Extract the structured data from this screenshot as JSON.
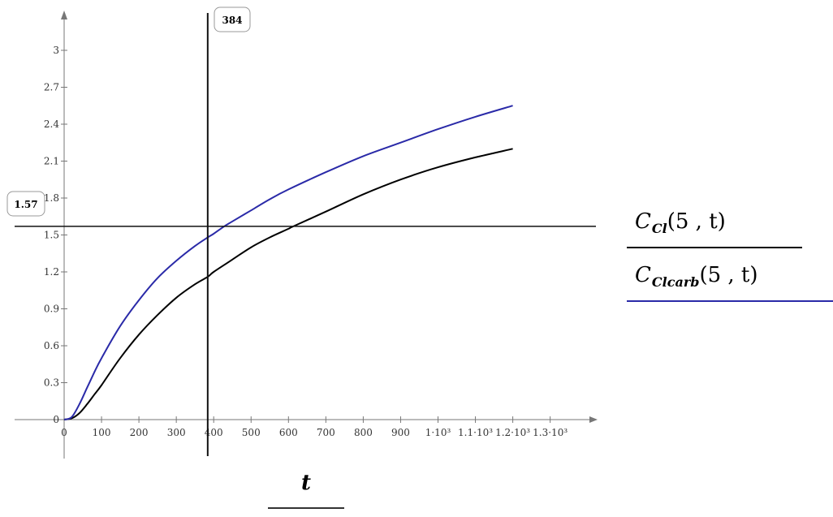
{
  "chart_data": {
    "type": "line",
    "xlabel": "t",
    "x_ticks": [
      "0",
      "100",
      "200",
      "300",
      "400",
      "500",
      "600",
      "700",
      "800",
      "900",
      "1·10³",
      "1.1·10³",
      "1.2·10³",
      "1.3·10³"
    ],
    "y_ticks": [
      "0",
      "0.3",
      "0.6",
      "0.9",
      "1.2",
      "1.5",
      "1.8",
      "2.1",
      "2.4",
      "2.7",
      "3"
    ],
    "xlim": [
      0,
      1400
    ],
    "ylim": [
      0,
      3.3
    ],
    "grid": false,
    "series": [
      {
        "name": "C_Cl(5,t)",
        "color": "#000000",
        "x": [
          0,
          20,
          40,
          60,
          80,
          100,
          150,
          200,
          250,
          300,
          350,
          384,
          400,
          450,
          500,
          550,
          600,
          613,
          700,
          800,
          900,
          1000,
          1100,
          1200
        ],
        "y": [
          0,
          0.01,
          0.05,
          0.12,
          0.2,
          0.28,
          0.5,
          0.69,
          0.85,
          0.99,
          1.1,
          1.16,
          1.2,
          1.3,
          1.4,
          1.48,
          1.55,
          1.57,
          1.69,
          1.83,
          1.95,
          2.05,
          2.13,
          2.2
        ]
      },
      {
        "name": "C_Clcarb(5,t)",
        "color": "#2a2aa8",
        "x": [
          0,
          20,
          40,
          60,
          80,
          100,
          150,
          200,
          250,
          300,
          350,
          384,
          400,
          428,
          450,
          500,
          550,
          600,
          700,
          800,
          900,
          1000,
          1100,
          1200
        ],
        "y": [
          0,
          0.02,
          0.12,
          0.25,
          0.38,
          0.5,
          0.76,
          0.97,
          1.15,
          1.29,
          1.41,
          1.48,
          1.51,
          1.57,
          1.61,
          1.7,
          1.79,
          1.87,
          2.01,
          2.14,
          2.25,
          2.36,
          2.46,
          2.55
        ]
      }
    ],
    "markers": {
      "x_value": 384,
      "x_label": "384",
      "y_value": 1.57,
      "y_label": "1.57"
    }
  },
  "legend": {
    "items": [
      {
        "base": "C",
        "sub": "Cl",
        "args": "(5 , t)",
        "color": "#000000"
      },
      {
        "base": "C",
        "sub": "Clcarb",
        "args": "(5 , t)",
        "color": "#2a2aa8"
      }
    ]
  }
}
